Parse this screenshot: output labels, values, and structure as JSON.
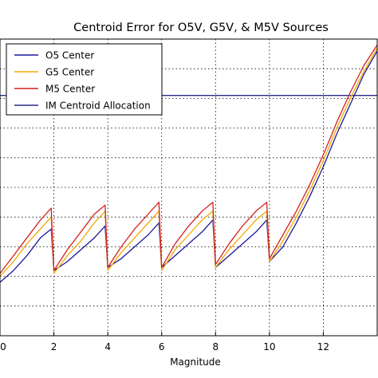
{
  "chart_data": {
    "type": "line",
    "title": "Centroid Error for O5V, G5V, & M5V Sources",
    "xlabel": "Magnitude",
    "ylabel": "",
    "xlim": [
      0,
      14
    ],
    "ylim": [
      0,
      1
    ],
    "x_ticks": [
      "0",
      "2",
      "4",
      "6",
      "8",
      "10",
      "12"
    ],
    "x_tick_values": [
      0,
      2,
      4,
      6,
      8,
      10,
      12
    ],
    "grid": true,
    "legend": "top-left",
    "allocation_level": 0.81,
    "series": [
      {
        "name": "O5 Center",
        "color": "#1a1a99",
        "x": [
          0.0,
          0.5,
          1.0,
          1.5,
          1.9,
          2.0,
          2.5,
          3.0,
          3.5,
          3.9,
          4.0,
          4.5,
          5.0,
          5.5,
          5.9,
          6.0,
          6.5,
          7.0,
          7.5,
          7.9,
          8.0,
          8.5,
          9.0,
          9.5,
          9.9,
          10.0,
          10.5,
          11.0,
          11.5,
          12.0,
          12.5,
          13.0,
          13.5,
          14.0
        ],
        "y": [
          0.18,
          0.22,
          0.27,
          0.33,
          0.36,
          0.22,
          0.25,
          0.29,
          0.33,
          0.37,
          0.23,
          0.26,
          0.3,
          0.34,
          0.38,
          0.23,
          0.27,
          0.31,
          0.35,
          0.39,
          0.23,
          0.27,
          0.31,
          0.35,
          0.39,
          0.25,
          0.3,
          0.38,
          0.47,
          0.57,
          0.68,
          0.78,
          0.88,
          0.96
        ]
      },
      {
        "name": "G5 Center",
        "color": "#f0a800",
        "x": [
          0.0,
          0.5,
          1.0,
          1.5,
          1.9,
          2.0,
          2.5,
          3.0,
          3.5,
          3.9,
          4.0,
          4.5,
          5.0,
          5.5,
          5.9,
          6.0,
          6.5,
          7.0,
          7.5,
          7.9,
          8.0,
          8.5,
          9.0,
          9.5,
          9.9,
          10.0,
          10.5,
          11.0,
          11.5,
          12.0,
          12.5,
          13.0,
          13.5,
          14.0
        ],
        "y": [
          0.2,
          0.25,
          0.31,
          0.36,
          0.4,
          0.21,
          0.27,
          0.32,
          0.38,
          0.42,
          0.22,
          0.28,
          0.33,
          0.38,
          0.42,
          0.22,
          0.29,
          0.34,
          0.39,
          0.42,
          0.23,
          0.29,
          0.34,
          0.39,
          0.42,
          0.25,
          0.32,
          0.4,
          0.49,
          0.59,
          0.7,
          0.8,
          0.89,
          0.97
        ]
      },
      {
        "name": "M5 Center",
        "color": "#d42020",
        "x": [
          0.0,
          0.5,
          1.0,
          1.5,
          1.9,
          2.0,
          2.5,
          3.0,
          3.5,
          3.9,
          4.0,
          4.5,
          5.0,
          5.5,
          5.9,
          6.0,
          6.5,
          7.0,
          7.5,
          7.9,
          8.0,
          8.5,
          9.0,
          9.5,
          9.9,
          10.0,
          10.5,
          11.0,
          11.5,
          12.0,
          12.5,
          13.0,
          13.5,
          14.0
        ],
        "y": [
          0.21,
          0.27,
          0.33,
          0.39,
          0.43,
          0.22,
          0.29,
          0.35,
          0.41,
          0.44,
          0.23,
          0.3,
          0.36,
          0.41,
          0.45,
          0.23,
          0.31,
          0.37,
          0.42,
          0.45,
          0.24,
          0.31,
          0.37,
          0.42,
          0.45,
          0.26,
          0.34,
          0.42,
          0.51,
          0.61,
          0.72,
          0.82,
          0.91,
          0.98
        ]
      },
      {
        "name": "IM Centroid Allocation",
        "color": "#2a2a8a",
        "x": [
          0,
          14
        ],
        "y": [
          0.81,
          0.81
        ]
      }
    ]
  }
}
